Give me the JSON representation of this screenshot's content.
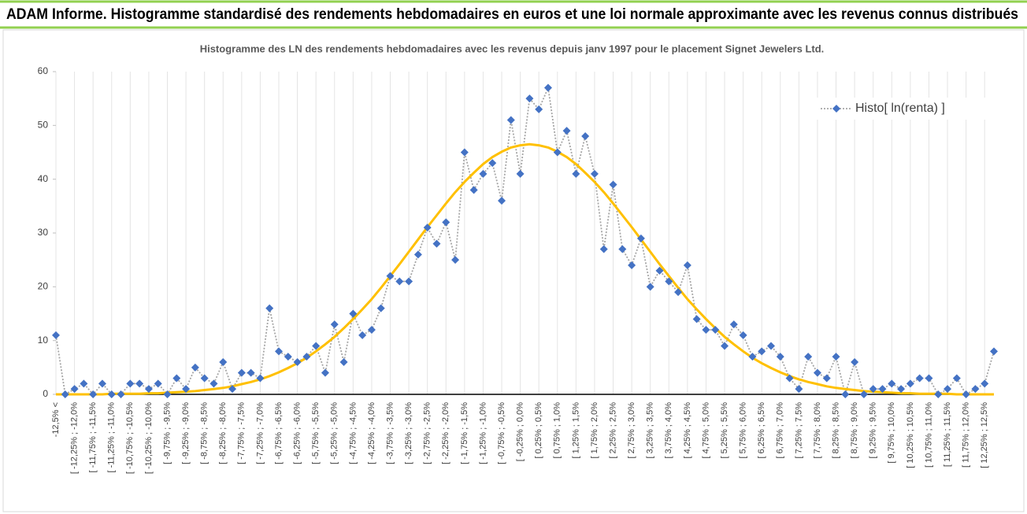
{
  "header": {
    "title": "ADAM Informe. Histogramme standardisé des rendements hebdomadaires en euros et une loi normale approximante avec les revenus connus distribués"
  },
  "chart_data": {
    "type": "line",
    "title": "Histogramme  des LN des rendements hebdomadaires avec les revenus depuis janv 1997 pour le placement Signet Jewelers  Ltd.",
    "categories": [
      "-12,5% <",
      null,
      "[ -12,25% ; -12,0%",
      null,
      "[ -11,75% ; -11,5%",
      null,
      "[ -11,25% ; -11,0%",
      null,
      "[ -10,75% ; -10,5%",
      null,
      "[ -10,25% ; -10,0%",
      null,
      "[ -9,75% ; -9,5%",
      null,
      "[ -9,25% ; -9,0%",
      null,
      "[ -8,75% ; -8,5%",
      null,
      "[ -8,25% ; -8,0%",
      null,
      "[ -7,75% ; -7,5%",
      null,
      "[ -7,25% ; -7,0%",
      null,
      "[ -6,75% ; -6,5%",
      null,
      "[ -6,25% ; -6,0%",
      null,
      "[ -5,75% ; -5,5%",
      null,
      "[ -5,25% ; -5,0%",
      null,
      "[ -4,75% ; -4,5%",
      null,
      "[ -4,25% ; -4,0%",
      null,
      "[ -3,75% ; -3,5%",
      null,
      "[ -3,25% ; -3,0%",
      null,
      "[ -2,75% ; -2,5%",
      null,
      "[ -2,25% ; -2,0%",
      null,
      "[ -1,75% ; -1,5%",
      null,
      "[ -1,25% ; -1,0%",
      null,
      "[ -0,75% ; -0,5%",
      null,
      "[ -0,25% ; 0,0%",
      null,
      "[ 0,25% ; 0,5%",
      null,
      "[ 0,75% ; 1,0%",
      null,
      "[ 1,25% ; 1,5%",
      null,
      "[ 1,75% ; 2,0%",
      null,
      "[ 2,25% ; 2,5%",
      null,
      "[ 2,75% ; 3,0%",
      null,
      "[ 3,25% ; 3,5%",
      null,
      "[ 3,75% ; 4,0%",
      null,
      "[ 4,25% ; 4,5%",
      null,
      "[ 4,75% ; 5,0%",
      null,
      "[ 5,25% ; 5,5%",
      null,
      "[ 5,75% ; 6,0%",
      null,
      "[ 6,25% ; 6,5%",
      null,
      "[ 6,75% ; 7,0%",
      null,
      "[ 7,25% ; 7,5%",
      null,
      "[ 7,75% ; 8,0%",
      null,
      "[ 8,25% ; 8,5%",
      null,
      "[ 8,75% ; 9,0%",
      null,
      "[ 9,25% ; 9,5%",
      null,
      "[ 9,75% ; 10,0%",
      null,
      "[ 10,25% ; 10,5%",
      null,
      "[ 10,75% ; 11,0%",
      null,
      "[ 11,25% ; 11,5%",
      null,
      "[ 11,75% ; 12,0%",
      null,
      "[ 12,25% ; 12,5%",
      null
    ],
    "series": [
      {
        "name": "Histo[ ln(renta) ]",
        "color": "#4472c4",
        "line_color": "#a6a6a6",
        "marker": "diamond",
        "values": [
          11,
          0,
          1,
          2,
          0,
          2,
          0,
          0,
          2,
          2,
          1,
          2,
          0,
          3,
          1,
          5,
          3,
          2,
          6,
          1,
          4,
          4,
          3,
          16,
          8,
          7,
          6,
          7,
          9,
          4,
          13,
          6,
          15,
          11,
          12,
          16,
          22,
          21,
          21,
          26,
          31,
          28,
          32,
          25,
          45,
          38,
          41,
          43,
          36,
          51,
          41,
          55,
          53,
          57,
          45,
          49,
          41,
          48,
          41,
          27,
          39,
          27,
          24,
          29,
          20,
          23,
          21,
          19,
          24,
          14,
          12,
          12,
          9,
          13,
          11,
          7,
          8,
          9,
          7,
          3,
          1,
          7,
          4,
          3,
          7,
          0,
          6,
          0,
          1,
          1,
          2,
          1,
          2,
          3,
          3,
          0,
          1,
          3,
          0,
          1,
          2,
          8
        ]
      },
      {
        "color": "#ffc000",
        "values": [
          0.0,
          0.0,
          0.0,
          0.0,
          0.0,
          0.0,
          0.1,
          0.1,
          0.1,
          0.1,
          0.2,
          0.2,
          0.3,
          0.4,
          0.5,
          0.6,
          0.8,
          1.0,
          1.2,
          1.5,
          1.9,
          2.3,
          2.8,
          3.4,
          4.1,
          4.9,
          5.8,
          6.8,
          8.0,
          9.3,
          10.7,
          12.3,
          14.0,
          15.8,
          17.7,
          19.8,
          22.0,
          24.2,
          26.5,
          28.8,
          31.1,
          33.3,
          35.5,
          37.6,
          39.5,
          41.2,
          42.8,
          44.1,
          45.1,
          45.9,
          46.3,
          46.5,
          46.3,
          45.9,
          45.1,
          44.1,
          42.8,
          41.2,
          39.5,
          37.6,
          35.5,
          33.3,
          31.1,
          28.8,
          26.5,
          24.2,
          22.0,
          19.8,
          17.7,
          15.8,
          14.0,
          12.3,
          10.7,
          9.3,
          8.0,
          6.8,
          5.8,
          4.9,
          4.1,
          3.4,
          2.8,
          2.3,
          1.9,
          1.5,
          1.2,
          1.0,
          0.8,
          0.6,
          0.5,
          0.4,
          0.3,
          0.2,
          0.2,
          0.1,
          0.1,
          0.1,
          0.1,
          0.0,
          0.0,
          0.0,
          0.0,
          0.0
        ]
      }
    ],
    "ylim": [
      0,
      60
    ],
    "yticks": [
      0,
      10,
      20,
      30,
      40,
      50,
      60
    ],
    "grid": "x",
    "legend": "upper right"
  }
}
